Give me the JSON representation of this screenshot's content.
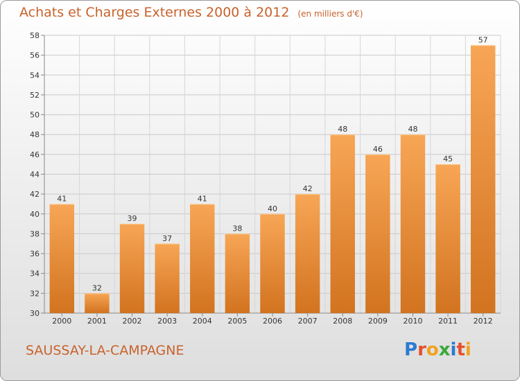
{
  "title": "Achats et Charges Externes 2000 à 2012",
  "unit": "(en milliers d'€)",
  "place": "SAUSSAY-LA-CAMPAGNE",
  "brand": [
    "P",
    "r",
    "o",
    "x",
    "i",
    "t",
    "i"
  ],
  "brand_colors": [
    "#2b7bd0",
    "#e5502e",
    "#f0a21f",
    "#3aa83a",
    "#2b7bd0",
    "#e5502e",
    "#f0a21f"
  ],
  "colors": {
    "title": "#c8622b",
    "bar_top": "#f7a656",
    "bar_bottom": "#d2731f"
  },
  "chart_data": {
    "type": "bar",
    "categories": [
      "2000",
      "2001",
      "2002",
      "2003",
      "2004",
      "2005",
      "2006",
      "2007",
      "2008",
      "2009",
      "2010",
      "2011",
      "2012"
    ],
    "values": [
      41,
      32,
      39,
      37,
      41,
      38,
      40,
      42,
      48,
      46,
      48,
      45,
      57
    ],
    "ylim": [
      30,
      58
    ],
    "yticks": [
      30,
      32,
      34,
      36,
      38,
      40,
      42,
      44,
      46,
      48,
      50,
      52,
      54,
      56,
      58
    ],
    "grid": true
  }
}
